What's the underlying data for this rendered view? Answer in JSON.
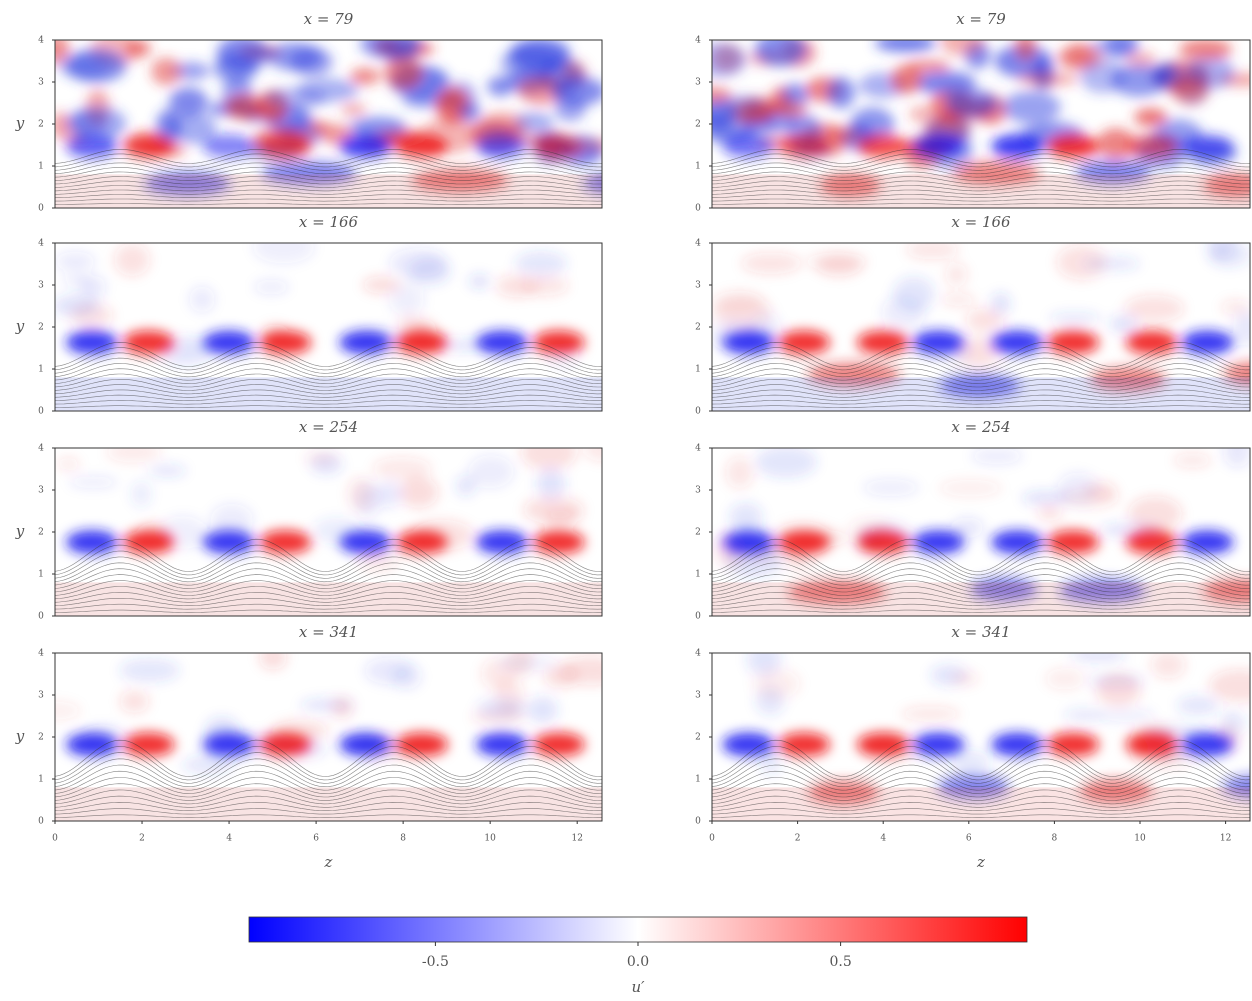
{
  "chart_data": [
    {
      "type": "heatmap",
      "title": "x = 79",
      "ylabel": "y",
      "xlim": [
        0,
        12.57
      ],
      "ylim": [
        0,
        4
      ],
      "yticks": [
        0,
        1,
        2,
        3,
        4
      ]
    },
    {
      "type": "heatmap",
      "title": "x = 79",
      "xlim": [
        0,
        12.57
      ],
      "ylim": [
        0,
        4
      ],
      "yticks": [
        0,
        1,
        2,
        3,
        4
      ]
    },
    {
      "type": "heatmap",
      "title": "x = 166",
      "ylabel": "y",
      "xlim": [
        0,
        12.57
      ],
      "ylim": [
        0,
        4
      ],
      "yticks": [
        0,
        1,
        2,
        3,
        4
      ]
    },
    {
      "type": "heatmap",
      "title": "x = 166",
      "xlim": [
        0,
        12.57
      ],
      "ylim": [
        0,
        4
      ],
      "yticks": [
        0,
        1,
        2,
        3,
        4
      ]
    },
    {
      "type": "heatmap",
      "title": "x = 254",
      "ylabel": "y",
      "xlim": [
        0,
        12.57
      ],
      "ylim": [
        0,
        4
      ],
      "yticks": [
        0,
        1,
        2,
        3,
        4
      ]
    },
    {
      "type": "heatmap",
      "title": "x = 254",
      "xlim": [
        0,
        12.57
      ],
      "ylim": [
        0,
        4
      ],
      "yticks": [
        0,
        1,
        2,
        3,
        4
      ]
    },
    {
      "type": "heatmap",
      "title": "x = 341",
      "ylabel": "y",
      "xlabel": "z",
      "xlim": [
        0,
        12.57
      ],
      "ylim": [
        0,
        4
      ],
      "yticks": [
        0,
        1,
        2,
        3,
        4
      ],
      "xticks": [
        0,
        2,
        4,
        6,
        8,
        10,
        12
      ]
    },
    {
      "type": "heatmap",
      "title": "x = 341",
      "xlabel": "z",
      "xlim": [
        0,
        12.57
      ],
      "ylim": [
        0,
        4
      ],
      "yticks": [
        0,
        1,
        2,
        3,
        4
      ],
      "xticks": [
        0,
        2,
        4,
        6,
        8,
        10,
        12
      ]
    },
    {
      "type": "colorbar",
      "label": "u′",
      "lim": [
        -0.96,
        0.96
      ],
      "ticks": [
        -0.5,
        {
          "value": 0,
          "label": "0.0"
        },
        0.5
      ],
      "colors": [
        "#0000ff",
        "#ffffff",
        "#ff0000"
      ]
    }
  ]
}
